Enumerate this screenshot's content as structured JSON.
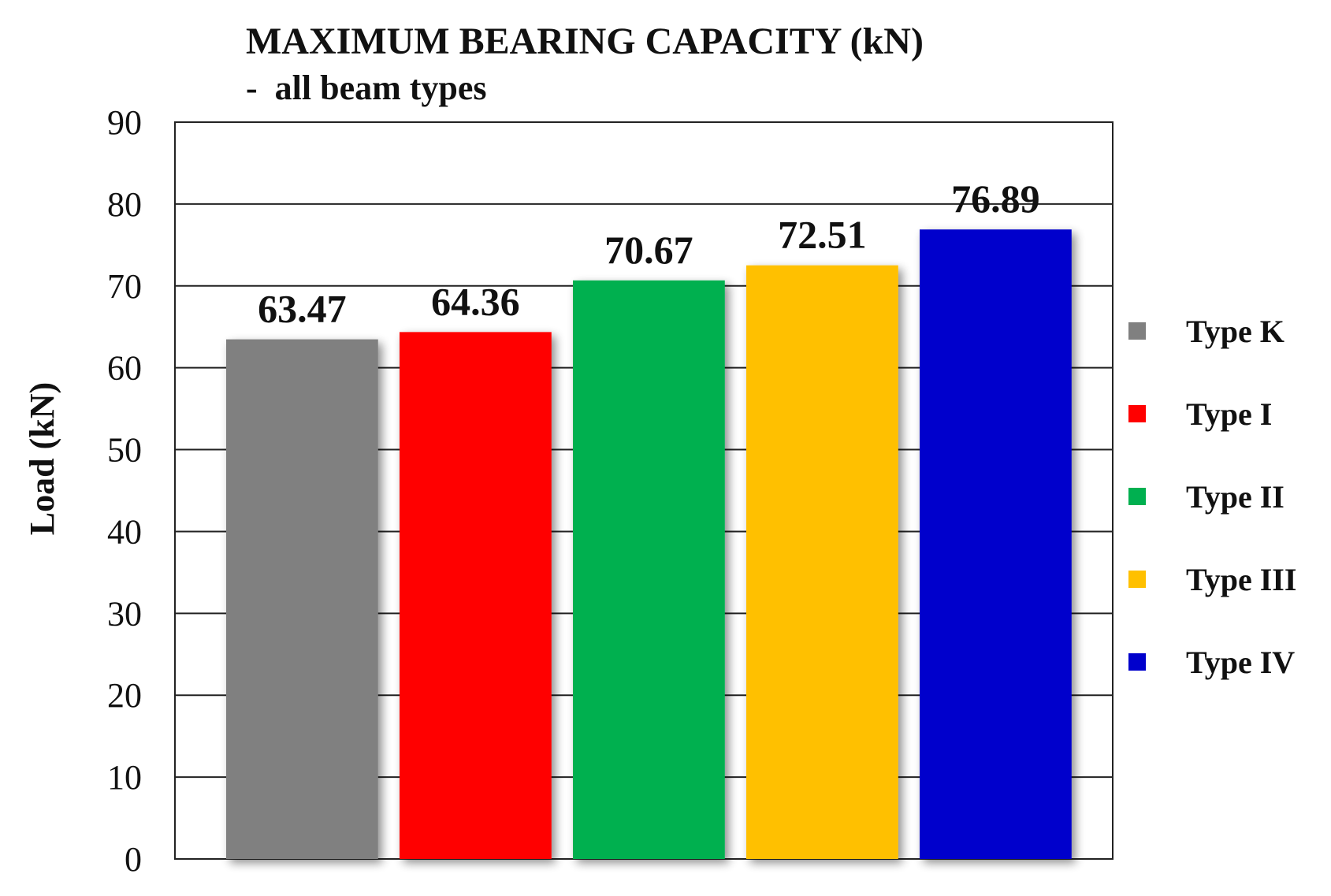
{
  "chart_data": {
    "type": "bar",
    "title": "MAXIMUM BEARING CAPACITY (kN)",
    "subtitle": "-  all beam types",
    "xlabel": "",
    "ylabel": "Load (kN)",
    "ylim": [
      0,
      90
    ],
    "yticks": [
      0,
      10,
      20,
      30,
      40,
      50,
      60,
      70,
      80,
      90
    ],
    "grid": true,
    "legend_position": "right",
    "categories": [
      "Type K",
      "Type I",
      "Type II",
      "Type III",
      "Type IV"
    ],
    "values": [
      63.47,
      64.36,
      70.67,
      72.51,
      76.89
    ],
    "value_labels": [
      "63.47",
      "64.36",
      "70.67",
      "72.51",
      "76.89"
    ],
    "colors": [
      "#808080",
      "#ff0000",
      "#00b050",
      "#ffc000",
      "#0000cc"
    ]
  }
}
